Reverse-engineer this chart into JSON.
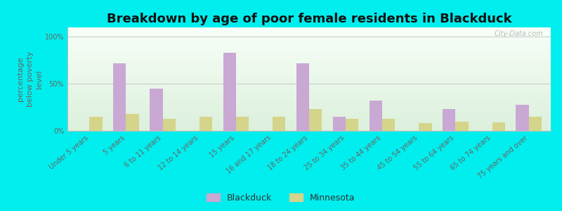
{
  "title": "Breakdown by age of poor female residents in Blackduck",
  "ylabel": "percentage\nbelow poverty\nlevel",
  "categories": [
    "Under 5 years",
    "5 years",
    "6 to 11 years",
    "12 to 14 years",
    "15 years",
    "16 and 17 years",
    "18 to 24 years",
    "25 to 34 years",
    "35 to 44 years",
    "45 to 54 years",
    "55 to 64 years",
    "65 to 74 years",
    "75 years and over"
  ],
  "blackduck_values": [
    0,
    72,
    45,
    0,
    83,
    0,
    72,
    15,
    32,
    0,
    23,
    0,
    28
  ],
  "minnesota_values": [
    15,
    18,
    13,
    15,
    15,
    15,
    23,
    13,
    13,
    8,
    10,
    9,
    15
  ],
  "blackduck_color": "#c9a8d4",
  "minnesota_color": "#d4d48a",
  "background_color": "#00eeee",
  "yticks": [
    0,
    50,
    100
  ],
  "ylim": [
    0,
    110
  ],
  "bar_width": 0.35,
  "title_fontsize": 13,
  "axis_label_fontsize": 8,
  "tick_fontsize": 7,
  "legend_fontsize": 9,
  "watermark_text": "City-Data.com"
}
